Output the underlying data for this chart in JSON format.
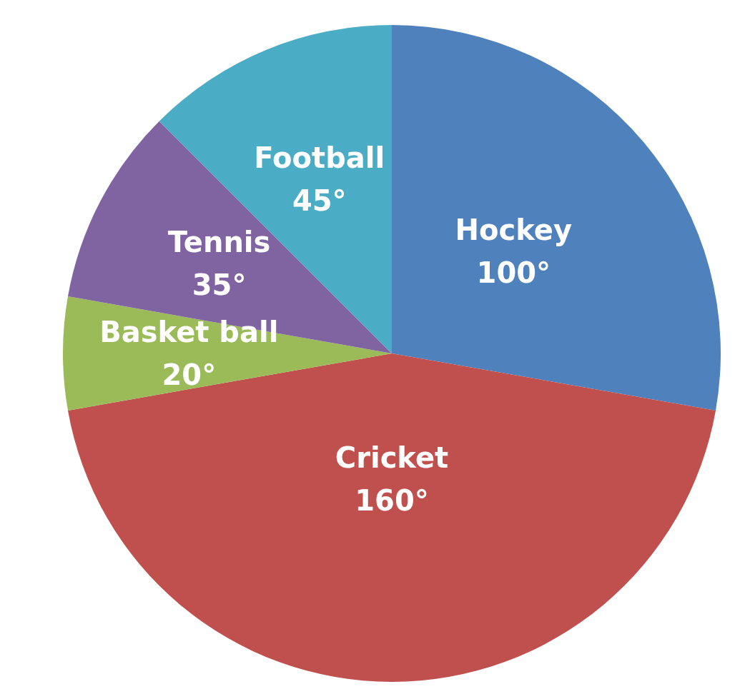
{
  "chart_data": {
    "type": "pie",
    "categories": [
      "Hockey",
      "Cricket",
      "Basket ball",
      "Tennis",
      "Football"
    ],
    "values": [
      100,
      160,
      20,
      35,
      45
    ],
    "value_labels": [
      "100°",
      "160°",
      "20°",
      "35°",
      "45°"
    ],
    "colors": [
      "#4f81bd",
      "#c0504d",
      "#9bbb59",
      "#8064a2",
      "#4bacc6"
    ],
    "legend": false
  }
}
